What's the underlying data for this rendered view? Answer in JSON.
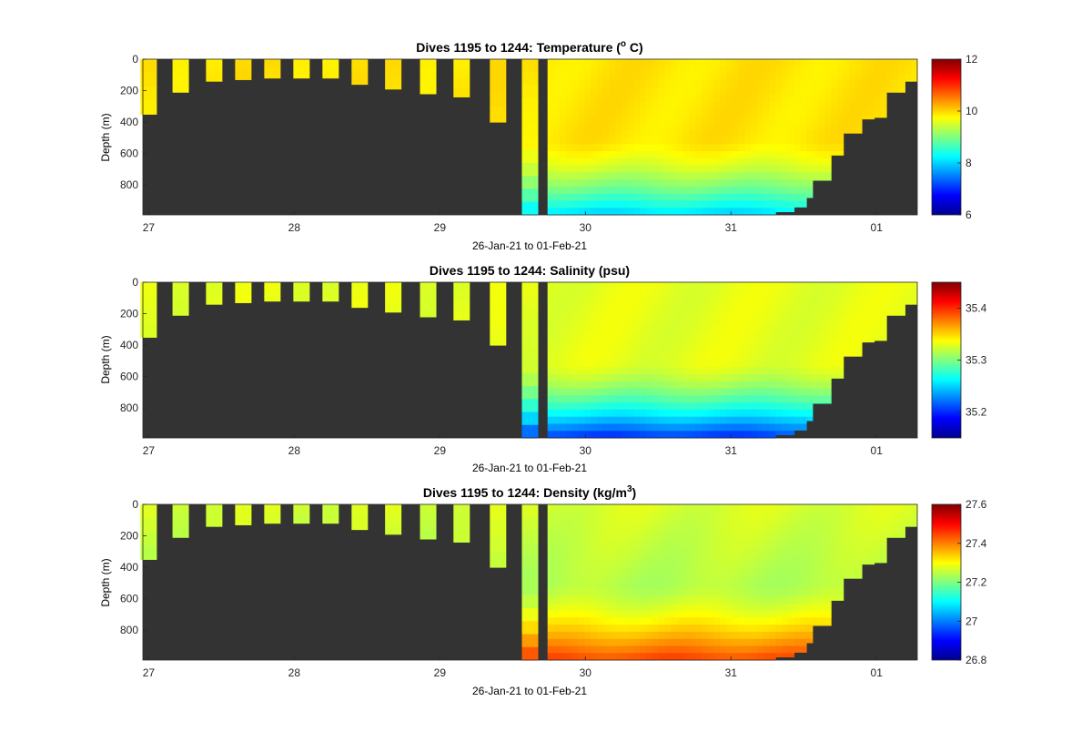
{
  "figure": {
    "background": "#ffffff",
    "no_data_color": "#333333"
  },
  "chart_data": [
    {
      "type": "heatmap",
      "variable": "temperature",
      "title": "Dives 1195 to 1244: Temperature (",
      "title_sup": "o",
      "title_suffix": " C)",
      "xlabel": "26-Jan-21 to 01-Feb-21",
      "ylabel": "Depth (m)",
      "x_ticks": [
        "27",
        "28",
        "29",
        "30",
        "31",
        "01"
      ],
      "x_tick_days": [
        27,
        28,
        29,
        30,
        31,
        32
      ],
      "x_range_days": [
        26.96,
        32.28
      ],
      "y_ticks": [
        "0",
        "200",
        "400",
        "600",
        "800"
      ],
      "y_tick_values": [
        0,
        200,
        400,
        600,
        800
      ],
      "ylim": [
        0,
        990
      ],
      "y_reversed": true,
      "colorbar": {
        "min": 6,
        "max": 12,
        "ticks": [
          "6",
          "8",
          "10",
          "12"
        ],
        "tick_values": [
          6,
          8,
          10,
          12
        ],
        "colormap": "jet"
      },
      "surface_value": 9.9,
      "mid_value": 9.9,
      "deep_value": 8.0
    },
    {
      "type": "heatmap",
      "variable": "salinity",
      "title": "Dives 1195 to 1244: Salinity (psu)",
      "title_sup": "",
      "title_suffix": "",
      "xlabel": "26-Jan-21 to 01-Feb-21",
      "ylabel": "Depth (m)",
      "x_ticks": [
        "27",
        "28",
        "29",
        "30",
        "31",
        "01"
      ],
      "x_tick_days": [
        27,
        28,
        29,
        30,
        31,
        32
      ],
      "x_range_days": [
        26.96,
        32.28
      ],
      "y_ticks": [
        "0",
        "200",
        "400",
        "600",
        "800"
      ],
      "y_tick_values": [
        0,
        200,
        400,
        600,
        800
      ],
      "ylim": [
        0,
        990
      ],
      "y_reversed": true,
      "colorbar": {
        "min": 35.15,
        "max": 35.45,
        "ticks": [
          "35.2",
          "35.3",
          "35.4"
        ],
        "tick_values": [
          35.2,
          35.3,
          35.4
        ],
        "colormap": "jet"
      },
      "surface_value": 35.33,
      "mid_value": 35.33,
      "deep_value": 35.2
    },
    {
      "type": "heatmap",
      "variable": "density",
      "title": "Dives 1195 to 1244: Density (kg/m",
      "title_sup": "3",
      "title_suffix": ")",
      "xlabel": "26-Jan-21 to 01-Feb-21",
      "ylabel": "Depth (m)",
      "x_ticks": [
        "27",
        "28",
        "29",
        "30",
        "31",
        "01"
      ],
      "x_tick_days": [
        27,
        28,
        29,
        30,
        31,
        32
      ],
      "x_range_days": [
        26.96,
        32.28
      ],
      "y_ticks": [
        "0",
        "200",
        "400",
        "600",
        "800"
      ],
      "y_tick_values": [
        0,
        200,
        400,
        600,
        800
      ],
      "ylim": [
        0,
        990
      ],
      "y_reversed": true,
      "colorbar": {
        "min": 26.8,
        "max": 27.6,
        "ticks": [
          "26.8",
          "27",
          "27.2",
          "27.4",
          "27.6"
        ],
        "tick_values": [
          26.8,
          27.0,
          27.2,
          27.4,
          27.6
        ],
        "colormap": "jet"
      },
      "surface_value": 27.27,
      "mid_value": 27.24,
      "deep_value": 27.45
    }
  ],
  "dives": [
    {
      "day": 27.0,
      "max_depth": 350
    },
    {
      "day": 27.22,
      "max_depth": 210
    },
    {
      "day": 27.45,
      "max_depth": 140
    },
    {
      "day": 27.65,
      "max_depth": 130
    },
    {
      "day": 27.85,
      "max_depth": 120
    },
    {
      "day": 28.05,
      "max_depth": 120
    },
    {
      "day": 28.25,
      "max_depth": 120
    },
    {
      "day": 28.45,
      "max_depth": 160
    },
    {
      "day": 28.68,
      "max_depth": 190
    },
    {
      "day": 28.92,
      "max_depth": 220
    },
    {
      "day": 29.15,
      "max_depth": 240
    },
    {
      "day": 29.4,
      "max_depth": 400
    },
    {
      "day": 29.62,
      "max_depth": 990
    }
  ],
  "continuous_section": {
    "start_day": 29.74,
    "end_day": 32.28,
    "bottom_profile": [
      {
        "day": 29.74,
        "max_depth": 990
      },
      {
        "day": 31.25,
        "max_depth": 990
      },
      {
        "day": 31.32,
        "max_depth": 970
      },
      {
        "day": 31.42,
        "max_depth": 940
      },
      {
        "day": 31.5,
        "max_depth": 880
      },
      {
        "day": 31.58,
        "max_depth": 770
      },
      {
        "day": 31.68,
        "max_depth": 610
      },
      {
        "day": 31.78,
        "max_depth": 470
      },
      {
        "day": 31.88,
        "max_depth": 380
      },
      {
        "day": 31.98,
        "max_depth": 370
      },
      {
        "day": 32.08,
        "max_depth": 210
      },
      {
        "day": 32.18,
        "max_depth": 140
      },
      {
        "day": 32.28,
        "max_depth": 130
      }
    ]
  }
}
